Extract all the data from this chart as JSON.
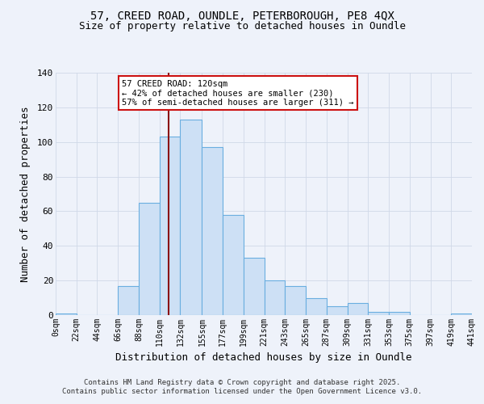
{
  "title_line1": "57, CREED ROAD, OUNDLE, PETERBOROUGH, PE8 4QX",
  "title_line2": "Size of property relative to detached houses in Oundle",
  "xlabel": "Distribution of detached houses by size in Oundle",
  "ylabel": "Number of detached properties",
  "bar_edges": [
    0,
    22,
    44,
    66,
    88,
    110,
    132,
    155,
    177,
    199,
    221,
    243,
    265,
    287,
    309,
    331,
    353,
    375,
    397,
    419,
    441
  ],
  "bar_heights": [
    1,
    0,
    0,
    17,
    65,
    103,
    113,
    97,
    58,
    33,
    20,
    17,
    10,
    5,
    7,
    2,
    2,
    0,
    0,
    1
  ],
  "bar_color": "#cde0f5",
  "bar_edge_color": "#6aaee0",
  "grid_color": "#d0d8e8",
  "vline_x": 120,
  "vline_color": "#8b1010",
  "annotation_title": "57 CREED ROAD: 120sqm",
  "annotation_line2": "← 42% of detached houses are smaller (230)",
  "annotation_line3": "57% of semi-detached houses are larger (311) →",
  "annotation_box_facecolor": "#ffffff",
  "annotation_box_edgecolor": "#cc1111",
  "ylim": [
    0,
    140
  ],
  "xlim": [
    0,
    441
  ],
  "yticks": [
    0,
    20,
    40,
    60,
    80,
    100,
    120,
    140
  ],
  "tick_labels": [
    "0sqm",
    "22sqm",
    "44sqm",
    "66sqm",
    "88sqm",
    "110sqm",
    "132sqm",
    "155sqm",
    "177sqm",
    "199sqm",
    "221sqm",
    "243sqm",
    "265sqm",
    "287sqm",
    "309sqm",
    "331sqm",
    "353sqm",
    "375sqm",
    "397sqm",
    "419sqm",
    "441sqm"
  ],
  "tick_positions": [
    0,
    22,
    44,
    66,
    88,
    110,
    132,
    155,
    177,
    199,
    221,
    243,
    265,
    287,
    309,
    331,
    353,
    375,
    397,
    419,
    441
  ],
  "footer_line1": "Contains HM Land Registry data © Crown copyright and database right 2025.",
  "footer_line2": "Contains public sector information licensed under the Open Government Licence v3.0.",
  "bg_color": "#eef2fa"
}
